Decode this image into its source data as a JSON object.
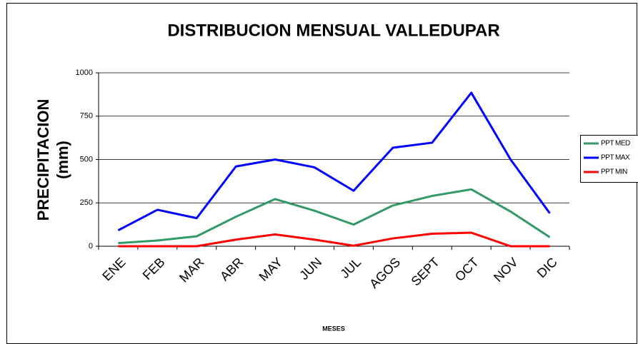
{
  "chart_data": {
    "type": "line",
    "title": "DISTRIBUCION MENSUAL VALLEDUPAR",
    "ylabel_lines": [
      "PRECIPITACION",
      "(mm)"
    ],
    "xlabel": "MESES",
    "categories": [
      "ENE",
      "FEB",
      "MAR",
      "ABR",
      "MAY",
      "JUN",
      "JUL",
      "AGOS",
      "SEPT",
      "OCT",
      "NOV",
      "DIC"
    ],
    "series": [
      {
        "name": "PPT MED",
        "color": "#339966",
        "values": [
          18,
          33,
          57,
          170,
          272,
          205,
          125,
          235,
          290,
          328,
          200,
          52
        ]
      },
      {
        "name": "PPT MAX",
        "color": "#0000ff",
        "values": [
          92,
          210,
          162,
          460,
          500,
          455,
          320,
          568,
          597,
          885,
          500,
          190
        ]
      },
      {
        "name": "PPT MIN",
        "color": "#ff0000",
        "values": [
          0,
          0,
          0,
          38,
          68,
          38,
          3,
          45,
          72,
          78,
          0,
          0
        ]
      }
    ],
    "ylim": [
      0,
      1000
    ],
    "yticks": [
      0,
      250,
      500,
      750,
      1000
    ],
    "grid": true,
    "legend": "right"
  }
}
